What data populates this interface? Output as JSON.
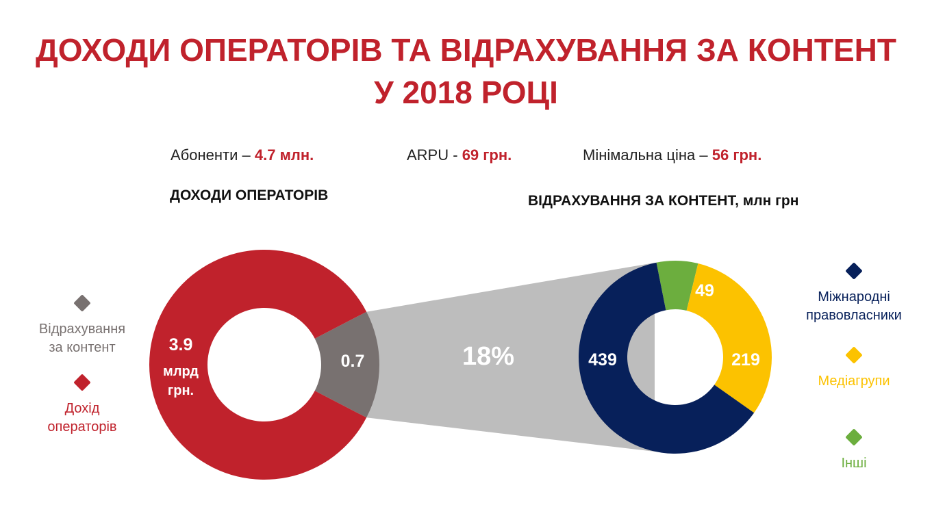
{
  "title": {
    "line1": "ДОХОДИ ОПЕРАТОРІВ ТА ВІДРАХУВАННЯ ЗА КОНТЕНТ",
    "line2": "У 2018 РОЦІ"
  },
  "stats": [
    {
      "label": "Абоненти – ",
      "value": "4.7 млн."
    },
    {
      "label": "ARPU - ",
      "value": "69 грн."
    },
    {
      "label": "Мінімальна ціна – ",
      "value": "56 грн."
    }
  ],
  "colors": {
    "red": "#c0222c",
    "gray": "#787170",
    "connector": "#bdbdbd",
    "navy": "#07205a",
    "yellow": "#fcc200",
    "green": "#6cae3e"
  },
  "chart_data": [
    {
      "type": "pie",
      "title": "ДОХОДИ ОПЕРАТОРІВ",
      "categories": [
        "Дохід операторів",
        "Відрахування за контент"
      ],
      "values": [
        3.9,
        0.7
      ],
      "data_labels": [
        "3.9 млрд грн.",
        "0.7"
      ],
      "legend": [
        "Відрахування за контент",
        "Дохід операторів"
      ],
      "legend_position": "left"
    },
    {
      "type": "pie",
      "title": "ВІДРАХУВАННЯ ЗА КОНТЕНТ, млн грн",
      "categories": [
        "Міжнародні правовласники",
        "Медіагрупи",
        "Інші"
      ],
      "values": [
        439,
        219,
        49
      ],
      "data_labels": [
        "439",
        "219",
        "49"
      ],
      "legend": [
        "Міжнародні правовласники",
        "Медіагрупи",
        "Інші"
      ],
      "legend_position": "right"
    }
  ],
  "connector_label": "18%",
  "left_chart_labels": {
    "main_line1": "3.9",
    "main_line2": "млрд",
    "main_line3": "грн.",
    "small": "0.7"
  },
  "legend_left": [
    {
      "line1": "Відрахування",
      "line2": "за контент",
      "color": "#787170"
    },
    {
      "line1": "Дохід",
      "line2": "операторів",
      "color": "#c0222c"
    }
  ],
  "legend_right": [
    {
      "line1": "Міжнародні",
      "line2": "правовласники",
      "color": "#07205a"
    },
    {
      "line1": "Медіагрупи",
      "line2": "",
      "color": "#fcc200"
    },
    {
      "line1": "Інші",
      "line2": "",
      "color": "#6cae3e"
    }
  ]
}
